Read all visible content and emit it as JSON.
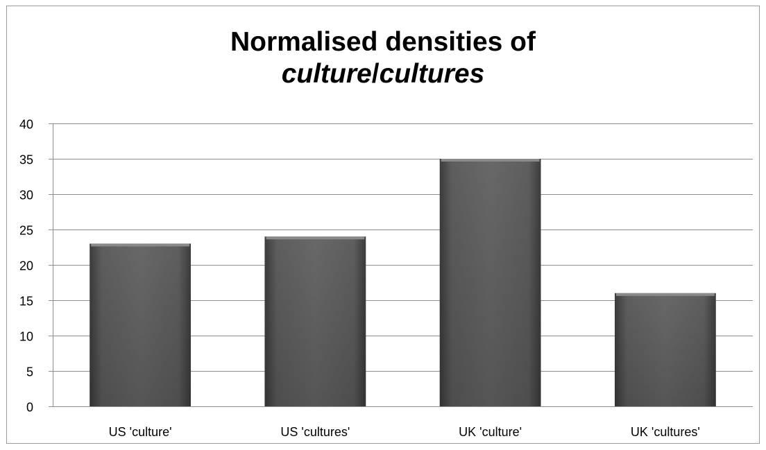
{
  "chart_data": {
    "type": "bar",
    "title_line1": "Normalised densities of",
    "title_line2_a": "culture",
    "title_line2_sep": "/",
    "title_line2_b": "cultures",
    "categories": [
      "US 'culture'",
      "US 'cultures'",
      "UK 'culture'",
      "UK 'cultures'"
    ],
    "values": [
      23,
      24,
      35,
      16
    ],
    "ylim": [
      0,
      40
    ],
    "yticks": [
      0,
      5,
      10,
      15,
      20,
      25,
      30,
      35,
      40
    ],
    "grid": true,
    "legend": "none",
    "bar_color": "#5a5a5a",
    "grid_color": "#8c8c8c"
  }
}
